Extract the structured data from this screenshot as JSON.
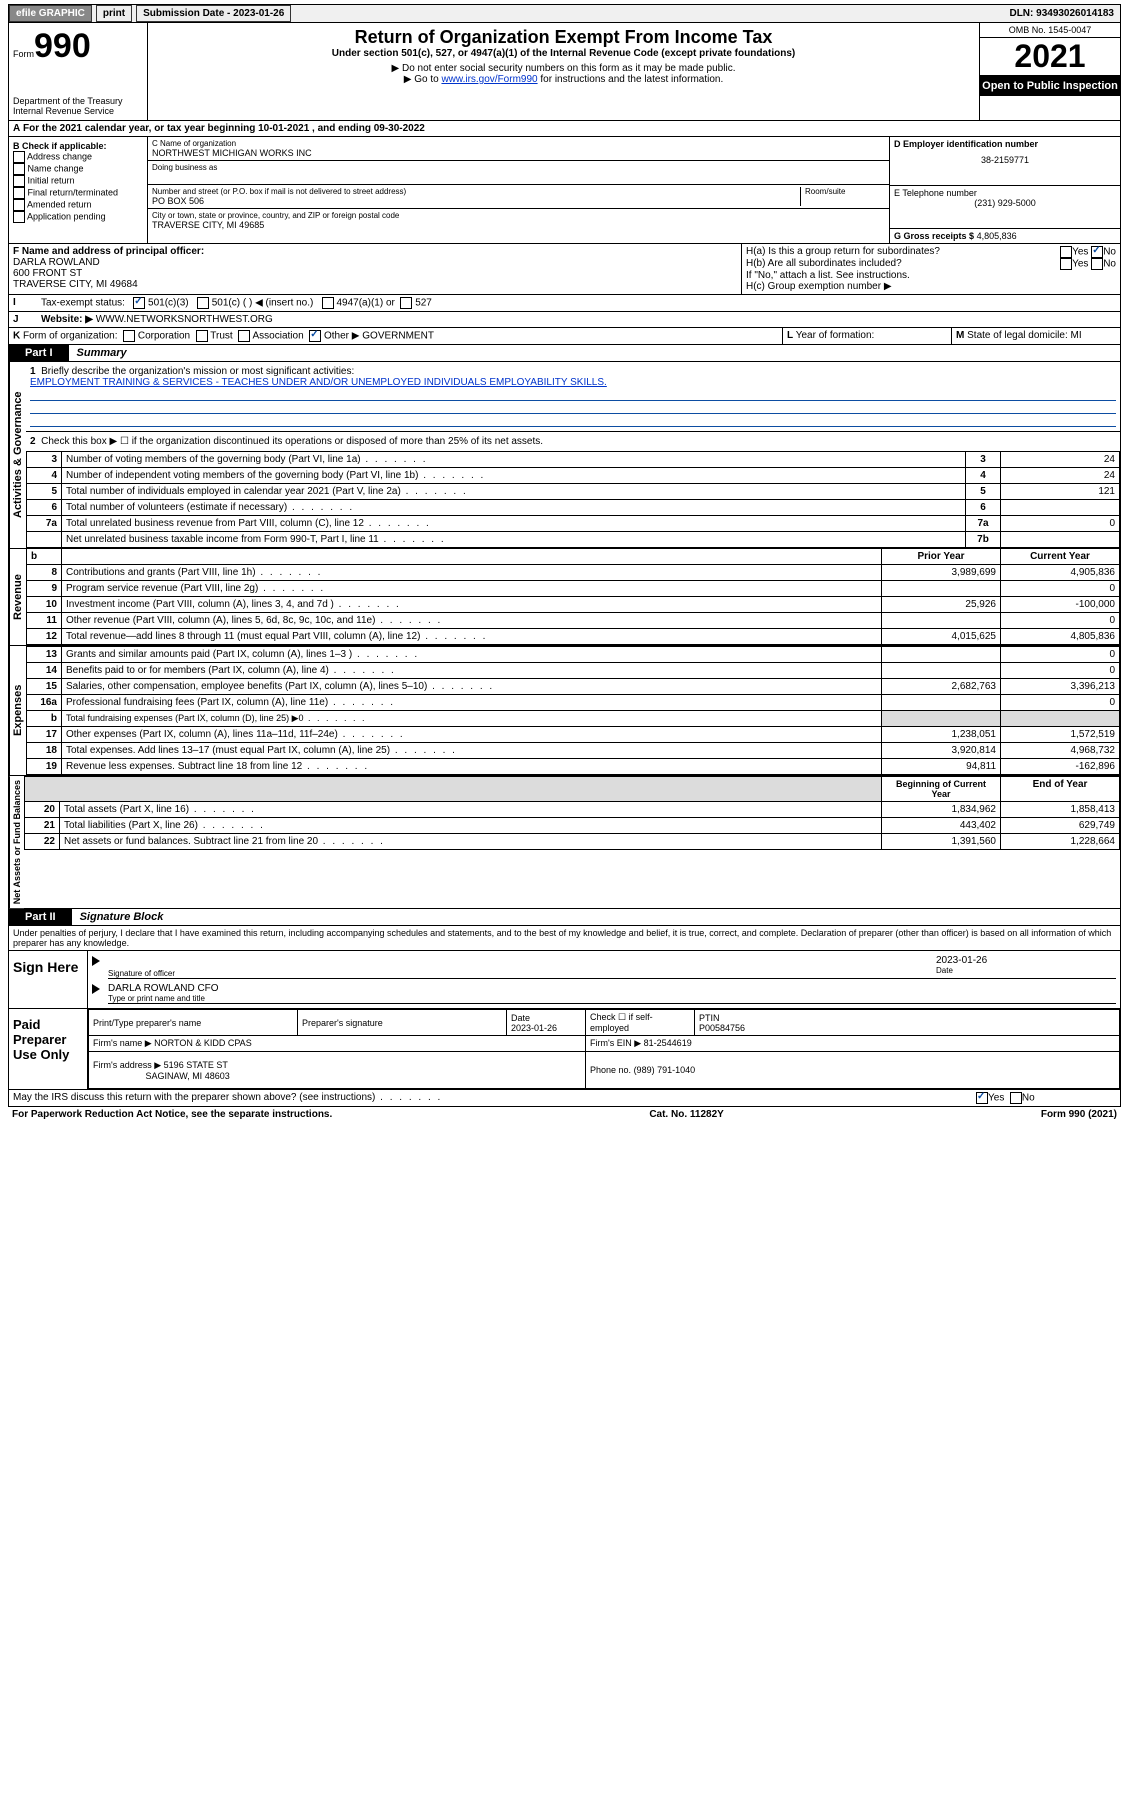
{
  "topbar": {
    "efile": "efile GRAPHIC",
    "print": "print",
    "submission_label": "Submission Date - 2023-01-26",
    "dln": "DLN: 93493026014183"
  },
  "header": {
    "form_word": "Form",
    "form_num": "990",
    "dept": "Department of the Treasury",
    "irs": "Internal Revenue Service",
    "title": "Return of Organization Exempt From Income Tax",
    "sub1": "Under section 501(c), 527, or 4947(a)(1) of the Internal Revenue Code (except private foundations)",
    "sub2": "▶ Do not enter social security numbers on this form as it may be made public.",
    "sub3_pre": "▶ Go to ",
    "sub3_link": "www.irs.gov/Form990",
    "sub3_post": " for instructions and the latest information.",
    "omb": "OMB No. 1545-0047",
    "year": "2021",
    "open": "Open to Public Inspection"
  },
  "rowA": {
    "label": "A",
    "text": "For the 2021 calendar year, or tax year beginning 10-01-2021   , and ending 09-30-2022"
  },
  "boxB": {
    "label": "B Check if applicable:",
    "items": [
      "Address change",
      "Name change",
      "Initial return",
      "Final return/terminated",
      "Amended return",
      "Application pending"
    ]
  },
  "boxC": {
    "name_label": "C Name of organization",
    "name": "NORTHWEST MICHIGAN WORKS INC",
    "dba_label": "Doing business as",
    "addr_label": "Number and street (or P.O. box if mail is not delivered to street address)",
    "room_label": "Room/suite",
    "addr": "PO BOX 506",
    "city_label": "City or town, state or province, country, and ZIP or foreign postal code",
    "city": "TRAVERSE CITY, MI  49685"
  },
  "boxD": {
    "ein_label": "D Employer identification number",
    "ein": "38-2159771"
  },
  "boxE": {
    "label": "E Telephone number",
    "value": "(231) 929-5000"
  },
  "boxG": {
    "label": "G Gross receipts $",
    "value": "4,805,836"
  },
  "boxF": {
    "label": "F Name and address of principal officer:",
    "name": "DARLA ROWLAND",
    "addr1": "600 FRONT ST",
    "addr2": "TRAVERSE CITY, MI  49684"
  },
  "boxH": {
    "ha": "H(a)  Is this a group return for subordinates?",
    "hb": "H(b)  Are all subordinates included?",
    "hb_note": "If \"No,\" attach a list. See instructions.",
    "hc": "H(c)  Group exemption number ▶",
    "yes": "Yes",
    "no": "No"
  },
  "rowI": {
    "label": "I",
    "title": "Tax-exempt status:",
    "c3": "501(c)(3)",
    "c": "501(c) (  ) ◀ (insert no.)",
    "a1": "4947(a)(1) or",
    "s527": "527"
  },
  "rowJ": {
    "label": "J",
    "title": "Website: ▶",
    "value": "WWW.NETWORKSNORTHWEST.ORG"
  },
  "rowK": {
    "label": "K",
    "text": "Form of organization:",
    "corp": "Corporation",
    "trust": "Trust",
    "assoc": "Association",
    "other": "Other ▶",
    "other_val": "GOVERNMENT"
  },
  "rowL": {
    "label": "L",
    "text": "Year of formation:"
  },
  "rowM": {
    "label": "M",
    "text": "State of legal domicile: MI"
  },
  "part1": {
    "label": "Part I",
    "title": "Summary"
  },
  "summary": {
    "q1_label": "Briefly describe the organization's mission or most significant activities:",
    "q1_text": "EMPLOYMENT TRAINING & SERVICES - TEACHES UNDER AND/OR UNEMPLOYED INDIVIDUALS EMPLOYABILITY SKILLS.",
    "q2": "Check this box ▶ ☐  if the organization discontinued its operations or disposed of more than 25% of its net assets.",
    "rows_top": [
      {
        "n": "3",
        "t": "Number of voting members of the governing body (Part VI, line 1a)",
        "box": "3",
        "v": "24"
      },
      {
        "n": "4",
        "t": "Number of independent voting members of the governing body (Part VI, line 1b)",
        "box": "4",
        "v": "24"
      },
      {
        "n": "5",
        "t": "Total number of individuals employed in calendar year 2021 (Part V, line 2a)",
        "box": "5",
        "v": "121"
      },
      {
        "n": "6",
        "t": "Total number of volunteers (estimate if necessary)",
        "box": "6",
        "v": ""
      },
      {
        "n": "7a",
        "t": "Total unrelated business revenue from Part VIII, column (C), line 12",
        "box": "7a",
        "v": "0"
      },
      {
        "n": "",
        "t": "Net unrelated business taxable income from Form 990-T, Part I, line 11",
        "box": "7b",
        "v": ""
      }
    ],
    "header_prior": "Prior Year",
    "header_current": "Current Year",
    "rows_rev": [
      {
        "n": "8",
        "t": "Contributions and grants (Part VIII, line 1h)",
        "p": "3,989,699",
        "c": "4,905,836"
      },
      {
        "n": "9",
        "t": "Program service revenue (Part VIII, line 2g)",
        "p": "",
        "c": "0"
      },
      {
        "n": "10",
        "t": "Investment income (Part VIII, column (A), lines 3, 4, and 7d )",
        "p": "25,926",
        "c": "-100,000"
      },
      {
        "n": "11",
        "t": "Other revenue (Part VIII, column (A), lines 5, 6d, 8c, 9c, 10c, and 11e)",
        "p": "",
        "c": "0"
      },
      {
        "n": "12",
        "t": "Total revenue—add lines 8 through 11 (must equal Part VIII, column (A), line 12)",
        "p": "4,015,625",
        "c": "4,805,836"
      }
    ],
    "rows_exp": [
      {
        "n": "13",
        "t": "Grants and similar amounts paid (Part IX, column (A), lines 1–3 )",
        "p": "",
        "c": "0"
      },
      {
        "n": "14",
        "t": "Benefits paid to or for members (Part IX, column (A), line 4)",
        "p": "",
        "c": "0"
      },
      {
        "n": "15",
        "t": "Salaries, other compensation, employee benefits (Part IX, column (A), lines 5–10)",
        "p": "2,682,763",
        "c": "3,396,213"
      },
      {
        "n": "16a",
        "t": "Professional fundraising fees (Part IX, column (A), line 11e)",
        "p": "",
        "c": "0"
      },
      {
        "n": "b",
        "t": "Total fundraising expenses (Part IX, column (D), line 25) ▶0",
        "p": "SHADE",
        "c": "SHADE"
      },
      {
        "n": "17",
        "t": "Other expenses (Part IX, column (A), lines 11a–11d, 11f–24e)",
        "p": "1,238,051",
        "c": "1,572,519"
      },
      {
        "n": "18",
        "t": "Total expenses. Add lines 13–17 (must equal Part IX, column (A), line 25)",
        "p": "3,920,814",
        "c": "4,968,732"
      },
      {
        "n": "19",
        "t": "Revenue less expenses. Subtract line 18 from line 12",
        "p": "94,811",
        "c": "-162,896"
      }
    ],
    "header_beg": "Beginning of Current Year",
    "header_end": "End of Year",
    "rows_net": [
      {
        "n": "20",
        "t": "Total assets (Part X, line 16)",
        "p": "1,834,962",
        "c": "1,858,413"
      },
      {
        "n": "21",
        "t": "Total liabilities (Part X, line 26)",
        "p": "443,402",
        "c": "629,749"
      },
      {
        "n": "22",
        "t": "Net assets or fund balances. Subtract line 21 from line 20",
        "p": "1,391,560",
        "c": "1,228,664"
      }
    ],
    "vlabel1": "Activities & Governance",
    "vlabel2": "Revenue",
    "vlabel3": "Expenses",
    "vlabel4": "Net Assets or Fund Balances"
  },
  "part2": {
    "label": "Part II",
    "title": "Signature Block"
  },
  "penalties": "Under penalties of perjury, I declare that I have examined this return, including accompanying schedules and statements, and to the best of my knowledge and belief, it is true, correct, and complete. Declaration of preparer (other than officer) is based on all information of which preparer has any knowledge.",
  "sign": {
    "here": "Sign Here",
    "sig_label": "Signature of officer",
    "date_label": "Date",
    "date": "2023-01-26",
    "name": "DARLA ROWLAND  CFO",
    "name_label": "Type or print name and title"
  },
  "paid": {
    "title": "Paid Preparer Use Only",
    "h_name": "Print/Type preparer's name",
    "h_sig": "Preparer's signature",
    "h_date": "Date",
    "date": "2023-01-26",
    "h_check": "Check ☐ if self-employed",
    "h_ptin": "PTIN",
    "ptin": "P00584756",
    "firm_name_label": "Firm's name    ▶",
    "firm_name": "NORTON & KIDD CPAS",
    "firm_ein_label": "Firm's EIN ▶",
    "firm_ein": "81-2544619",
    "firm_addr_label": "Firm's address ▶",
    "firm_addr1": "5196 STATE ST",
    "firm_addr2": "SAGINAW, MI  48603",
    "phone_label": "Phone no.",
    "phone": "(989) 791-1040"
  },
  "discuss": {
    "text": "May the IRS discuss this return with the preparer shown above? (see instructions)",
    "yes": "Yes",
    "no": "No"
  },
  "footer": {
    "left": "For Paperwork Reduction Act Notice, see the separate instructions.",
    "mid": "Cat. No. 11282Y",
    "right": "Form 990 (2021)"
  }
}
